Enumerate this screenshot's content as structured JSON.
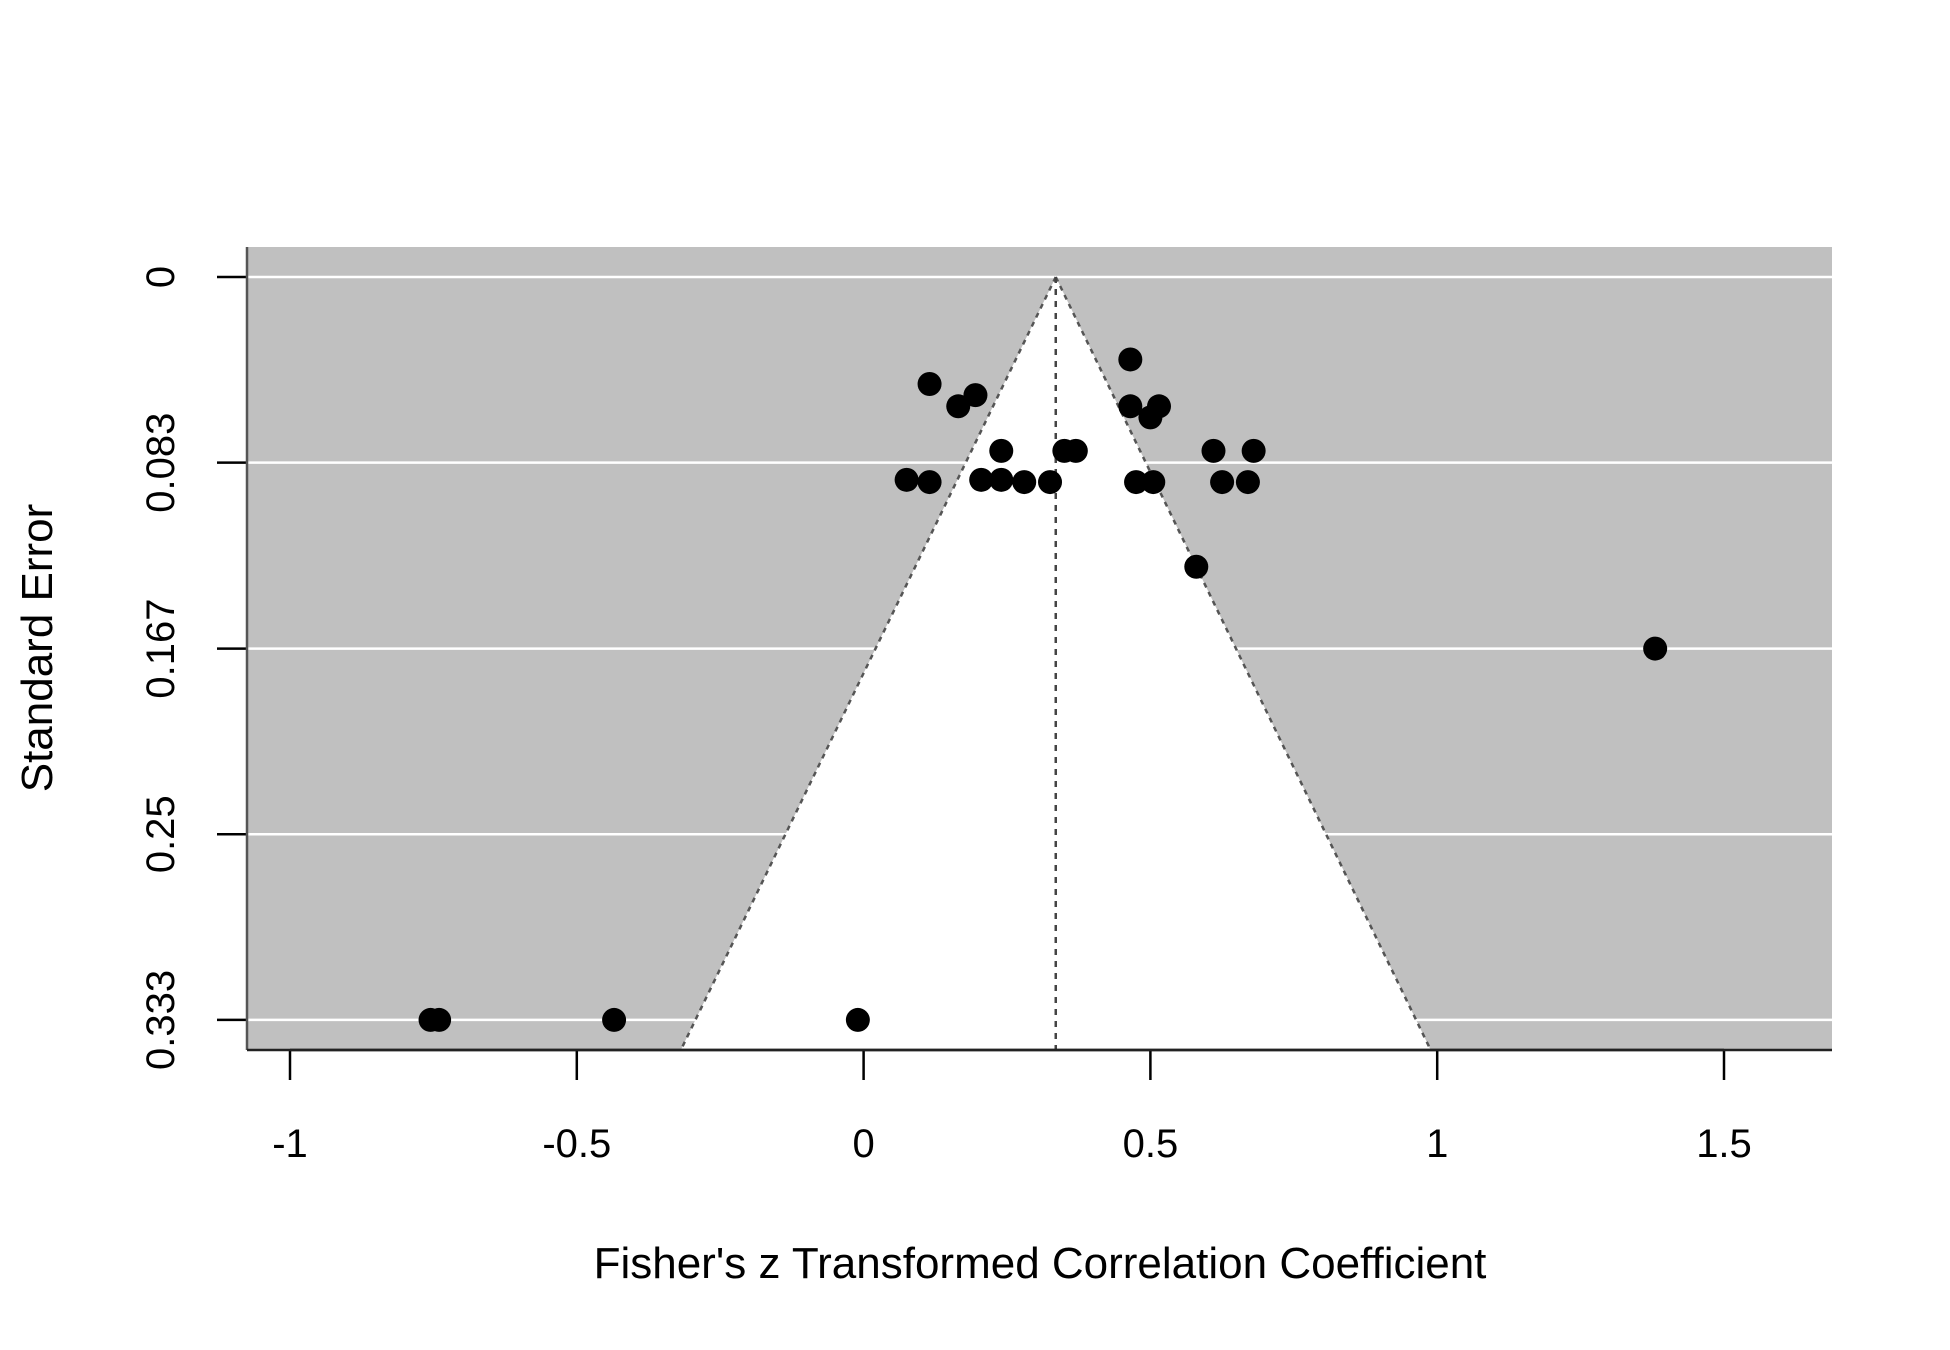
{
  "chart_data": {
    "type": "scatter",
    "title": "",
    "xlabel": "Fisher's z Transformed Correlation Coefficient",
    "ylabel": "Standard Error",
    "xlim": [
      -1.075,
      1.695
    ],
    "ylim": [
      0,
      0.3335
    ],
    "y_axis_reversed": true,
    "x_ticks": [
      {
        "value": -1,
        "label": "-1"
      },
      {
        "value": -0.5,
        "label": "-0.5"
      },
      {
        "value": 0,
        "label": "0"
      },
      {
        "value": 0.5,
        "label": "0.5"
      },
      {
        "value": 1,
        "label": "1"
      },
      {
        "value": 1.5,
        "label": "1.5"
      }
    ],
    "y_ticks": [
      {
        "value": 0,
        "label": "0"
      },
      {
        "value": 0.0833,
        "label": "0.083"
      },
      {
        "value": 0.1667,
        "label": "0.167"
      },
      {
        "value": 0.25,
        "label": "0.25"
      },
      {
        "value": 0.3333,
        "label": "0.333"
      }
    ],
    "grid": true,
    "funnel": {
      "center": 0.335,
      "z": 1.96,
      "region_fill": "#c0c0c0",
      "funnel_fill": "#ffffff"
    },
    "points": [
      {
        "x": 0.465,
        "y": 0.037
      },
      {
        "x": 0.115,
        "y": 0.048
      },
      {
        "x": 0.195,
        "y": 0.053
      },
      {
        "x": 0.165,
        "y": 0.058
      },
      {
        "x": 0.465,
        "y": 0.058
      },
      {
        "x": 0.515,
        "y": 0.058
      },
      {
        "x": 0.5,
        "y": 0.063
      },
      {
        "x": 0.24,
        "y": 0.078
      },
      {
        "x": 0.35,
        "y": 0.078
      },
      {
        "x": 0.37,
        "y": 0.078
      },
      {
        "x": 0.61,
        "y": 0.078
      },
      {
        "x": 0.68,
        "y": 0.078
      },
      {
        "x": 0.075,
        "y": 0.091
      },
      {
        "x": 0.115,
        "y": 0.092
      },
      {
        "x": 0.205,
        "y": 0.091
      },
      {
        "x": 0.24,
        "y": 0.091
      },
      {
        "x": 0.28,
        "y": 0.092
      },
      {
        "x": 0.325,
        "y": 0.092
      },
      {
        "x": 0.475,
        "y": 0.092
      },
      {
        "x": 0.505,
        "y": 0.092
      },
      {
        "x": 0.625,
        "y": 0.092
      },
      {
        "x": 0.67,
        "y": 0.092
      },
      {
        "x": 0.58,
        "y": 0.13
      },
      {
        "x": 1.38,
        "y": 0.1667
      },
      {
        "x": -0.755,
        "y": 0.3333
      },
      {
        "x": -0.74,
        "y": 0.3333
      },
      {
        "x": -0.435,
        "y": 0.3333
      },
      {
        "x": -0.01,
        "y": 0.3333
      }
    ]
  }
}
